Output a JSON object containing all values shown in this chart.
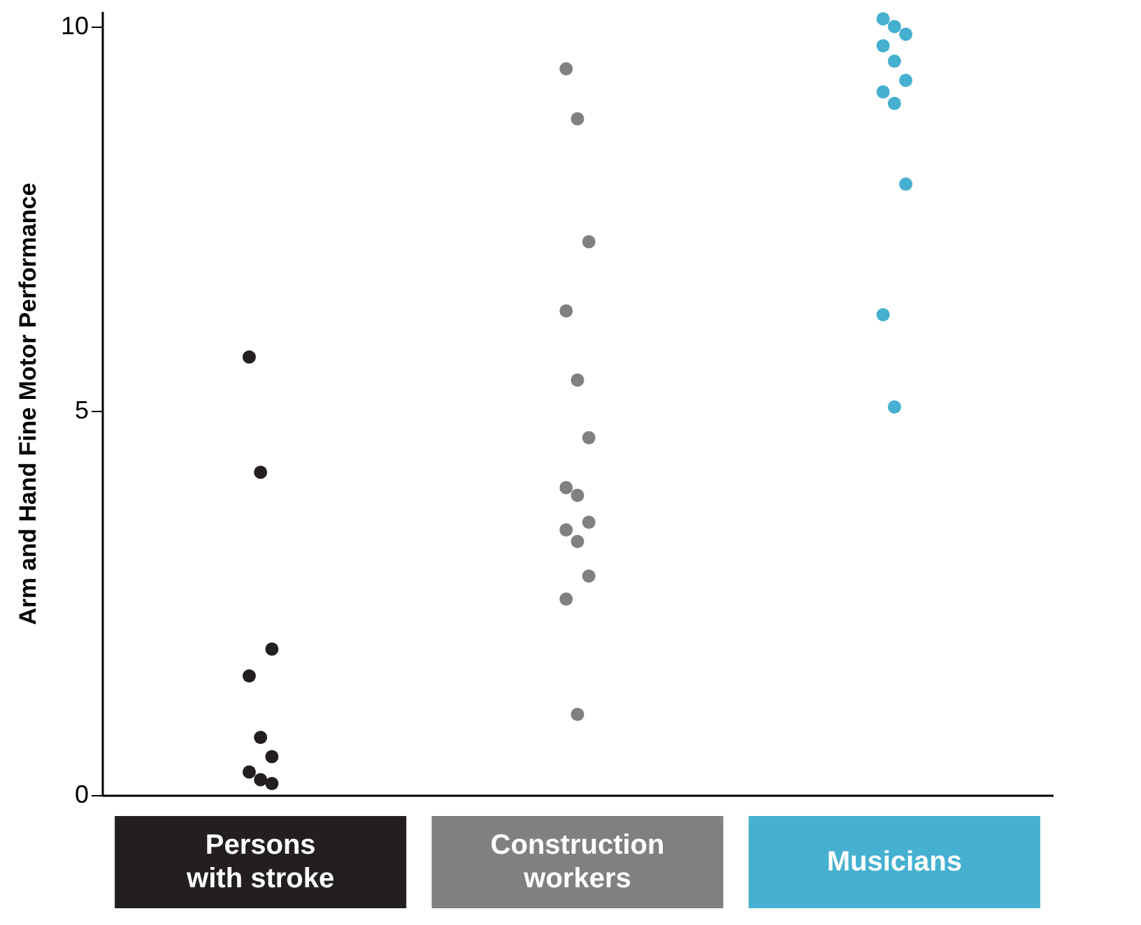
{
  "chart_data": {
    "type": "scatter",
    "ylabel": "Arm and Hand Fine Motor Performance",
    "categories": [
      "Persons\nwith stroke",
      "Construction\nworkers",
      "Musicians"
    ],
    "series": [
      {
        "color": "#231f20",
        "x": [
          "Persons\nwith stroke",
          "Persons\nwith stroke",
          "Persons\nwith stroke",
          "Persons\nwith stroke",
          "Persons\nwith stroke",
          "Persons\nwith stroke",
          "Persons\nwith stroke",
          "Persons\nwith stroke",
          "Persons\nwith stroke"
        ],
        "values": [
          5.7,
          4.2,
          1.9,
          1.55,
          0.75,
          0.5,
          0.3,
          0.2,
          0.15
        ]
      },
      {
        "color": "#808080",
        "x": [
          "Construction\nworkers",
          "Construction\nworkers",
          "Construction\nworkers",
          "Construction\nworkers",
          "Construction\nworkers",
          "Construction\nworkers",
          "Construction\nworkers",
          "Construction\nworkers",
          "Construction\nworkers",
          "Construction\nworkers",
          "Construction\nworkers",
          "Construction\nworkers",
          "Construction\nworkers",
          "Construction\nworkers"
        ],
        "values": [
          9.45,
          8.8,
          7.2,
          6.3,
          5.4,
          4.65,
          4.0,
          3.9,
          3.55,
          3.45,
          3.3,
          2.85,
          2.55,
          1.05
        ]
      },
      {
        "color": "#45b0d0",
        "x": [
          "Musicians",
          "Musicians",
          "Musicians",
          "Musicians",
          "Musicians",
          "Musicians",
          "Musicians",
          "Musicians",
          "Musicians",
          "Musicians",
          "Musicians"
        ],
        "values": [
          10.1,
          10.0,
          9.9,
          9.75,
          9.55,
          9.3,
          9.15,
          9.0,
          7.95,
          6.25,
          5.05
        ]
      }
    ],
    "ylim": [
      0,
      10.2
    ],
    "yticks": [
      0,
      5,
      10
    ],
    "marker": "circle"
  }
}
